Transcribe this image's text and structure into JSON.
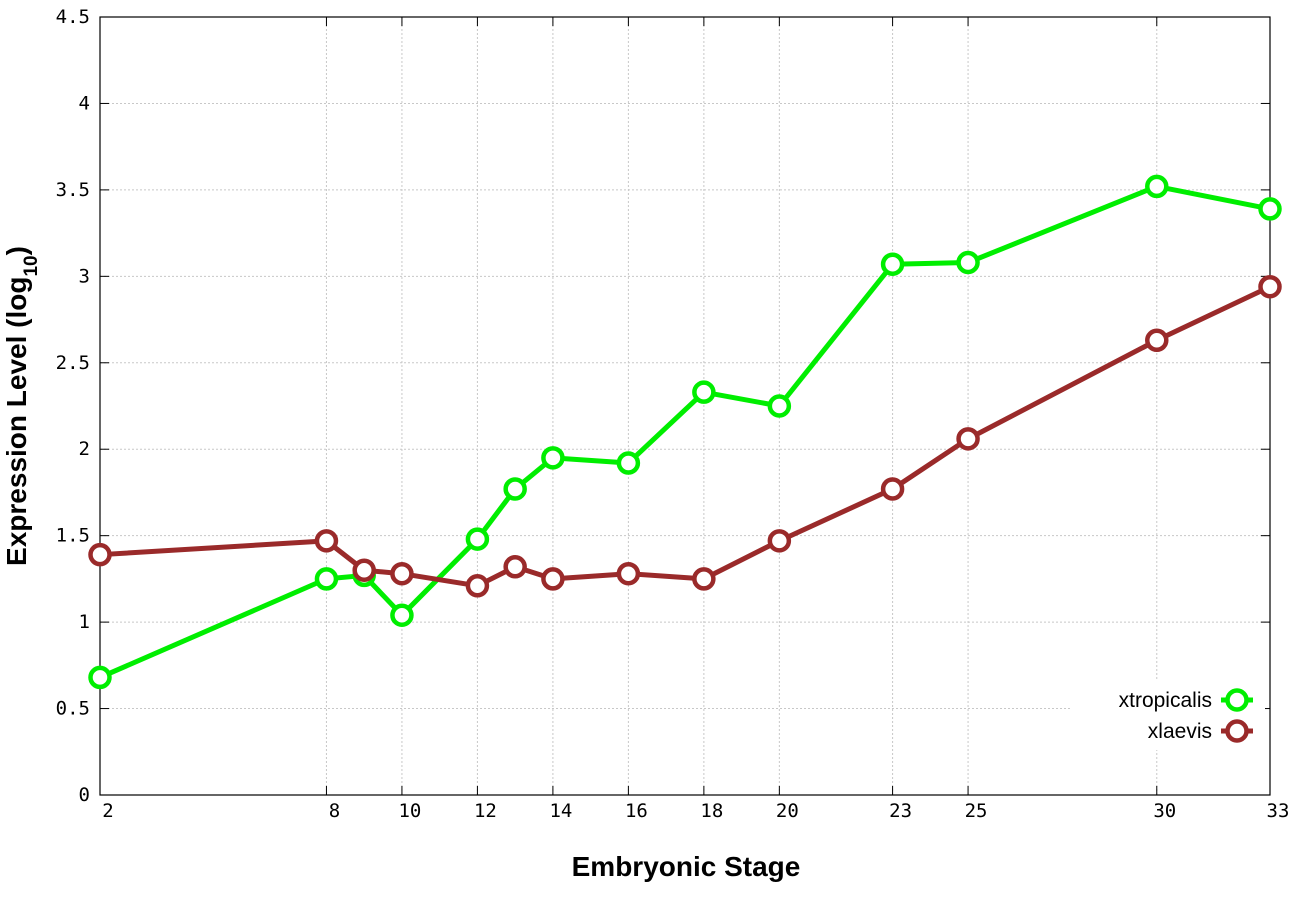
{
  "chart_data": {
    "type": "line",
    "xlabel": "Embryonic Stage",
    "ylabel_main": "Expression Level (log",
    "ylabel_sub": "10",
    "ylabel_end": ")",
    "x_ticks": [
      "2",
      "8",
      "10",
      "12",
      "14",
      "16",
      "18",
      "20",
      "23",
      "25",
      "30",
      "33"
    ],
    "y_ticks": [
      "0",
      "0.5",
      "1",
      "1.5",
      "2",
      "2.5",
      "3",
      "3.5",
      "4",
      "4.5"
    ],
    "ylim": [
      0,
      4.5
    ],
    "xlim": [
      2,
      33
    ],
    "grid": true,
    "legend_position": "bottom-right",
    "series": [
      {
        "name": "xtropicalis",
        "color": "#00ee00",
        "x": [
          2,
          8,
          9,
          10,
          12,
          13,
          14,
          16,
          18,
          20,
          23,
          25,
          30,
          33
        ],
        "values": [
          0.68,
          1.25,
          1.27,
          1.04,
          1.48,
          1.77,
          1.95,
          1.92,
          2.33,
          2.25,
          3.07,
          3.08,
          3.52,
          3.39
        ]
      },
      {
        "name": "xlaevis",
        "color": "#9a2a2a",
        "x": [
          2,
          8,
          9,
          10,
          12,
          13,
          14,
          16,
          18,
          20,
          23,
          25,
          30,
          33
        ],
        "values": [
          1.39,
          1.47,
          1.3,
          1.28,
          1.21,
          1.32,
          1.25,
          1.28,
          1.25,
          1.47,
          1.77,
          2.06,
          2.63,
          2.94
        ]
      }
    ]
  }
}
